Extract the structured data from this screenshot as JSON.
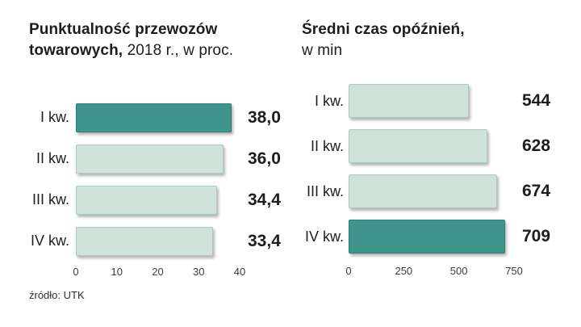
{
  "chart_data": [
    {
      "type": "bar",
      "title": "Punktualność przewozów towarowych, 2018 r., w proc.",
      "title_bold": "Punktualność przewozów towarowych,",
      "title_rest": "2018 r., w proc.",
      "categories": [
        "I kw.",
        "II kw.",
        "III kw.",
        "IV kw."
      ],
      "values": [
        38.0,
        36.0,
        34.4,
        33.4
      ],
      "value_labels": [
        "38,0",
        "36,0",
        "34,4",
        "33,4"
      ],
      "highlight_index": 0,
      "xlabel": "",
      "ylabel": "",
      "xlim": [
        0,
        40
      ],
      "xmax": 40,
      "ticks": [
        "0",
        "10",
        "20",
        "30",
        "40"
      ],
      "grid": false,
      "legend": "none"
    },
    {
      "type": "bar",
      "title": "Średni czas opóźnień, w min",
      "title_bold": "Średni czas opóźnień,",
      "title_rest": "w min",
      "categories": [
        "I kw.",
        "II kw.",
        "III kw.",
        "IV kw."
      ],
      "values": [
        544,
        628,
        674,
        709
      ],
      "value_labels": [
        "544",
        "628",
        "674",
        "709"
      ],
      "highlight_index": 3,
      "xlabel": "",
      "ylabel": "",
      "xlim": [
        0,
        750
      ],
      "xmax": 750,
      "ticks": [
        "0",
        "250",
        "500",
        "750"
      ],
      "grid": false,
      "legend": "none"
    }
  ],
  "source": "źródło: UTK",
  "colors": {
    "highlight": "#3f948b",
    "highlight_border": "#317a70",
    "bar": "#d0e3da",
    "bar_border": "#a8ccbf",
    "text": "#1d1d1b"
  }
}
